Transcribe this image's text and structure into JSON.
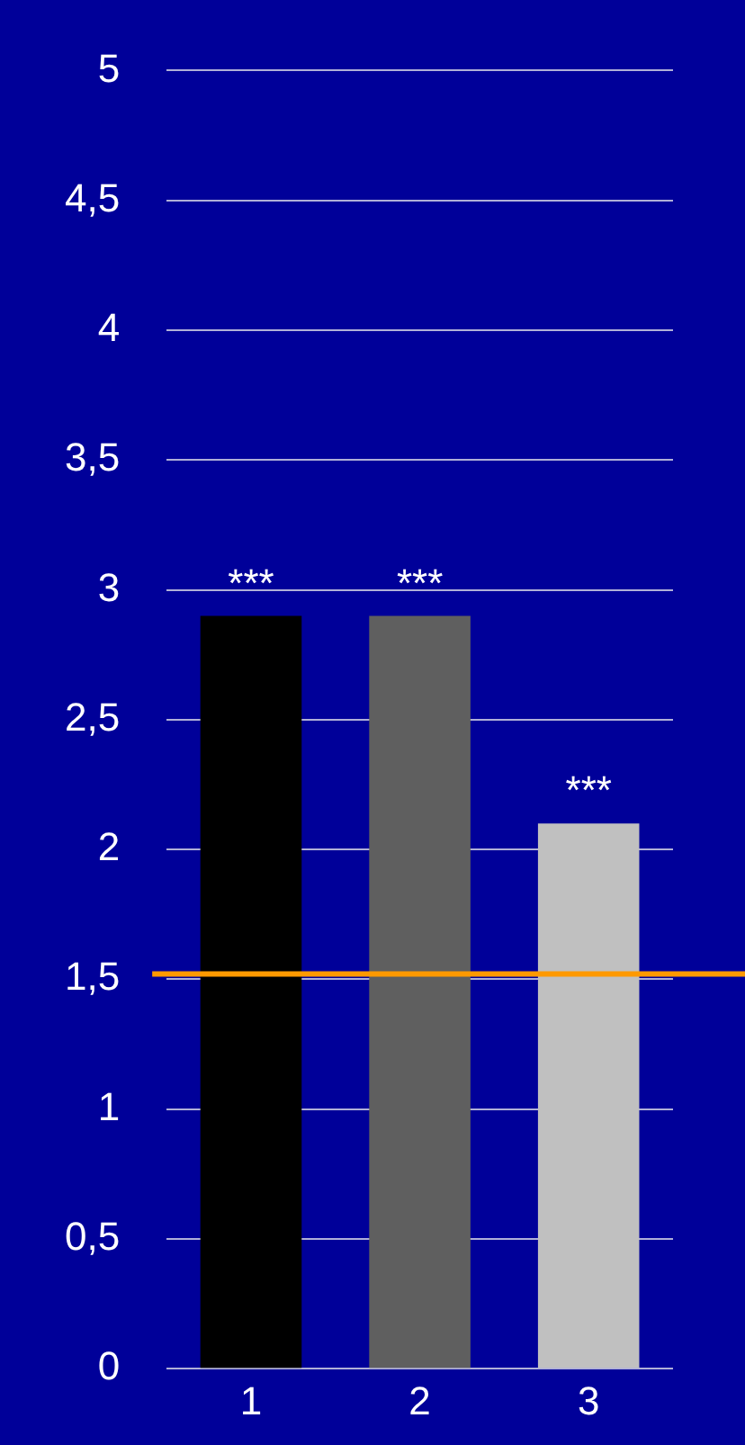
{
  "chart_data": {
    "type": "bar",
    "categories": [
      "1",
      "2",
      "3"
    ],
    "values": [
      2.9,
      2.9,
      2.1
    ],
    "colors": [
      "#000000",
      "#5f5f5f",
      "#c0c0c0"
    ],
    "ylim": [
      0,
      5
    ],
    "yticks": [
      0,
      {
        "value": 0.5,
        "label": "0,5"
      },
      1,
      {
        "value": 1.5,
        "label": "1,5"
      },
      2,
      {
        "value": 2.5,
        "label": "2,5"
      },
      3,
      {
        "value": 3.5,
        "label": "3,5"
      },
      4,
      {
        "value": 4.5,
        "label": "4,5"
      },
      5
    ],
    "grid": "y",
    "legend": false,
    "ref_lines": [
      {
        "axis": "y",
        "value": 1.52,
        "color": "#ff9900"
      }
    ],
    "annotations": [
      {
        "text": "***",
        "x": "1",
        "y": 2.9
      },
      {
        "text": "***",
        "x": "2",
        "y": 2.9
      },
      {
        "text": "***",
        "x": "3",
        "y": 2.1
      }
    ]
  }
}
